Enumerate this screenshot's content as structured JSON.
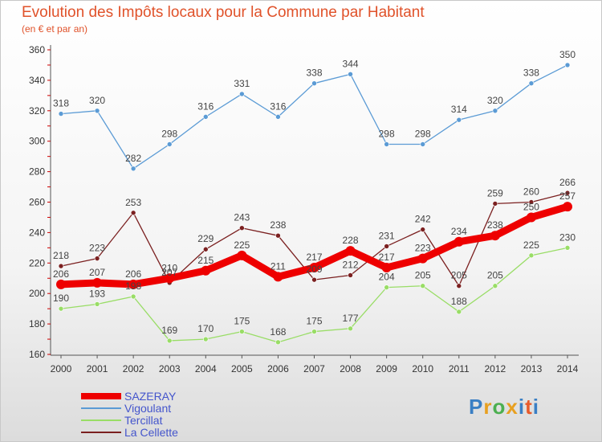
{
  "title": "Evolution des Impôts locaux pour la Commune par Habitant",
  "subtitle": "(en € et par an)",
  "logo": "Proxiti",
  "chart_data": {
    "type": "line",
    "x": [
      2000,
      2001,
      2002,
      2003,
      2004,
      2005,
      2006,
      2007,
      2008,
      2009,
      2010,
      2011,
      2012,
      2013,
      2014
    ],
    "ylim": [
      160,
      360
    ],
    "yticks": [
      160,
      180,
      200,
      220,
      240,
      260,
      280,
      300,
      320,
      340,
      360
    ],
    "grid": false,
    "legend_position": "bottom-left",
    "series": [
      {
        "name": "SAZERAY",
        "color": "#ee0000",
        "values": [
          206,
          207,
          206,
          210,
          215,
          225,
          211,
          217,
          228,
          217,
          223,
          234,
          238,
          250,
          257
        ]
      },
      {
        "name": "Vigoulant",
        "color": "#5b9bd5",
        "values": [
          318,
          320,
          282,
          298,
          316,
          331,
          316,
          338,
          344,
          298,
          298,
          314,
          320,
          338,
          350
        ]
      },
      {
        "name": "Tercillat",
        "color": "#99dd66",
        "values": [
          190,
          193,
          198,
          169,
          170,
          175,
          168,
          175,
          177,
          204,
          205,
          188,
          205,
          225,
          230
        ]
      },
      {
        "name": "La Cellette",
        "color": "#7b2020",
        "values": [
          218,
          223,
          253,
          207,
          229,
          243,
          238,
          209,
          212,
          231,
          242,
          205,
          259,
          260,
          266
        ]
      }
    ]
  }
}
